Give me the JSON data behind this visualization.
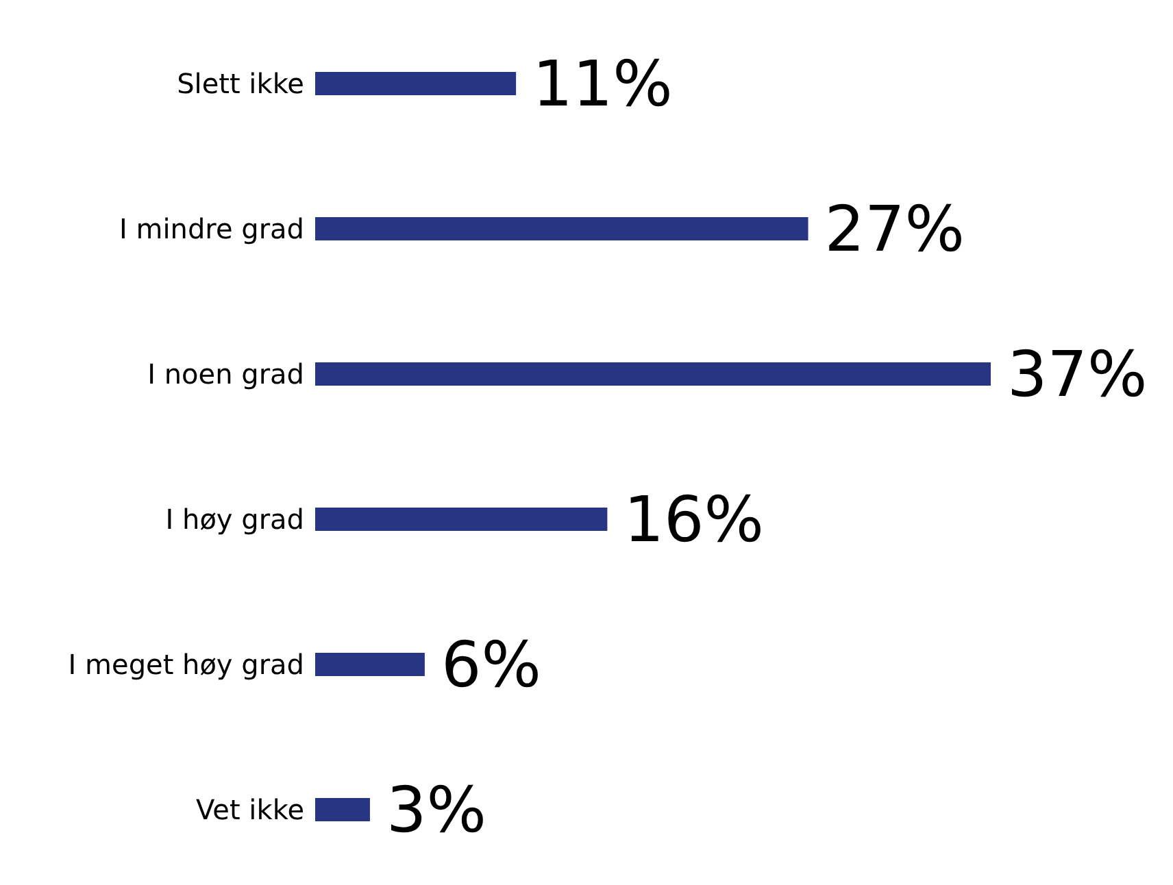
{
  "chart_data": {
    "type": "bar",
    "orientation": "horizontal",
    "categories": [
      "Slett ikke",
      "I mindre grad",
      "I noen grad",
      "I høy grad",
      "I meget høy grad",
      "Vet ikke"
    ],
    "values": [
      11,
      27,
      37,
      16,
      6,
      3
    ],
    "value_labels": [
      "11%",
      "27%",
      "37%",
      "16%",
      "6%",
      "3%"
    ],
    "color": "#283583"
  }
}
